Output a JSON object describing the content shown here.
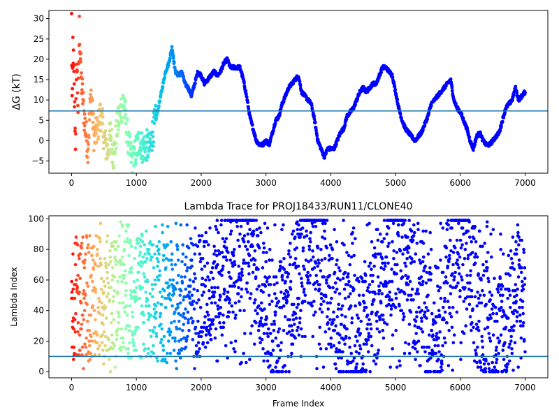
{
  "chart_data": [
    {
      "type": "scatter",
      "title": "",
      "xlabel": "",
      "ylabel": "ΔG (kT)",
      "xlim": [
        -350,
        7350
      ],
      "ylim": [
        -8,
        32
      ],
      "xticks": [
        0,
        1000,
        2000,
        3000,
        4000,
        5000,
        6000,
        7000
      ],
      "xtick_labels": [
        "0",
        "1000",
        "2000",
        "3000",
        "4000",
        "5000",
        "6000",
        "7000"
      ],
      "yticks": [
        -5,
        0,
        5,
        10,
        15,
        20,
        25,
        30
      ],
      "ytick_labels": [
        "−5",
        "0",
        "5",
        "10",
        "15",
        "20",
        "25",
        "30"
      ],
      "hline": 7.3,
      "colormap": "rainbow (red at frame 0 to violet at end)",
      "grid": false,
      "trace": [
        [
          0,
          30
        ],
        [
          10,
          5
        ],
        [
          20,
          24
        ],
        [
          40,
          12
        ],
        [
          60,
          0
        ],
        [
          80,
          20
        ],
        [
          100,
          8
        ],
        [
          120,
          28
        ],
        [
          150,
          15
        ],
        [
          200,
          5
        ],
        [
          250,
          -2
        ],
        [
          300,
          12
        ],
        [
          350,
          0
        ],
        [
          400,
          3
        ],
        [
          450,
          7
        ],
        [
          500,
          1
        ],
        [
          550,
          -3
        ],
        [
          600,
          2
        ],
        [
          650,
          -4
        ],
        [
          700,
          3
        ],
        [
          750,
          7
        ],
        [
          800,
          10
        ],
        [
          850,
          3
        ],
        [
          900,
          -3
        ],
        [
          950,
          -5
        ],
        [
          1000,
          -2
        ],
        [
          1050,
          0
        ],
        [
          1100,
          -2
        ],
        [
          1150,
          -1
        ],
        [
          1200,
          -2
        ],
        [
          1250,
          2
        ],
        [
          1300,
          5
        ],
        [
          1350,
          9
        ],
        [
          1400,
          13
        ],
        [
          1450,
          17
        ],
        [
          1500,
          19
        ],
        [
          1550,
          23
        ],
        [
          1600,
          17
        ],
        [
          1650,
          16
        ],
        [
          1700,
          17
        ],
        [
          1750,
          14
        ],
        [
          1800,
          13
        ],
        [
          1850,
          11
        ],
        [
          1900,
          14
        ],
        [
          1950,
          17
        ],
        [
          2000,
          16
        ],
        [
          2050,
          14
        ],
        [
          2100,
          15
        ],
        [
          2150,
          16
        ],
        [
          2200,
          17
        ],
        [
          2250,
          16
        ],
        [
          2300,
          17
        ],
        [
          2350,
          19
        ],
        [
          2400,
          20
        ],
        [
          2450,
          18
        ],
        [
          2500,
          18
        ],
        [
          2550,
          18
        ],
        [
          2600,
          18
        ],
        [
          2650,
          15
        ],
        [
          2700,
          11
        ],
        [
          2750,
          6
        ],
        [
          2800,
          3
        ],
        [
          2850,
          0
        ],
        [
          2900,
          -1
        ],
        [
          2950,
          -1
        ],
        [
          3000,
          0
        ],
        [
          3050,
          -1
        ],
        [
          3100,
          2
        ],
        [
          3150,
          5
        ],
        [
          3200,
          6
        ],
        [
          3250,
          9
        ],
        [
          3300,
          11
        ],
        [
          3350,
          13
        ],
        [
          3400,
          14
        ],
        [
          3450,
          15
        ],
        [
          3500,
          16
        ],
        [
          3550,
          12
        ],
        [
          3600,
          11
        ],
        [
          3650,
          10
        ],
        [
          3700,
          9
        ],
        [
          3750,
          5
        ],
        [
          3800,
          0
        ],
        [
          3850,
          -2
        ],
        [
          3900,
          -4
        ],
        [
          3950,
          -2
        ],
        [
          4000,
          -2
        ],
        [
          4050,
          -2
        ],
        [
          4100,
          0
        ],
        [
          4150,
          2
        ],
        [
          4200,
          3
        ],
        [
          4250,
          6
        ],
        [
          4300,
          7
        ],
        [
          4350,
          8
        ],
        [
          4400,
          10
        ],
        [
          4450,
          12
        ],
        [
          4500,
          13
        ],
        [
          4550,
          12
        ],
        [
          4600,
          13
        ],
        [
          4650,
          14
        ],
        [
          4700,
          14
        ],
        [
          4750,
          16
        ],
        [
          4800,
          18
        ],
        [
          4850,
          18
        ],
        [
          4900,
          17
        ],
        [
          4950,
          16
        ],
        [
          5000,
          12
        ],
        [
          5050,
          8
        ],
        [
          5100,
          5
        ],
        [
          5150,
          3
        ],
        [
          5200,
          2
        ],
        [
          5250,
          1
        ],
        [
          5300,
          0
        ],
        [
          5350,
          1
        ],
        [
          5400,
          2
        ],
        [
          5450,
          4
        ],
        [
          5500,
          6
        ],
        [
          5550,
          9
        ],
        [
          5600,
          10
        ],
        [
          5650,
          11
        ],
        [
          5700,
          12
        ],
        [
          5750,
          13
        ],
        [
          5800,
          14
        ],
        [
          5850,
          15
        ],
        [
          5900,
          10
        ],
        [
          5950,
          8
        ],
        [
          6000,
          7
        ],
        [
          6050,
          5
        ],
        [
          6100,
          3
        ],
        [
          6150,
          0
        ],
        [
          6200,
          -2
        ],
        [
          6250,
          1
        ],
        [
          6300,
          2
        ],
        [
          6350,
          0
        ],
        [
          6400,
          -1
        ],
        [
          6450,
          -1
        ],
        [
          6500,
          0
        ],
        [
          6550,
          1
        ],
        [
          6600,
          2
        ],
        [
          6650,
          5
        ],
        [
          6700,
          8
        ],
        [
          6750,
          9
        ],
        [
          6800,
          10
        ],
        [
          6850,
          13
        ],
        [
          6900,
          10
        ],
        [
          6950,
          11
        ],
        [
          7000,
          12
        ]
      ]
    },
    {
      "type": "scatter",
      "title": "Lambda Trace for PROJ18433/RUN11/CLONE40",
      "xlabel": "Frame Index",
      "ylabel": "Lambda Index",
      "xlim": [
        -350,
        7350
      ],
      "ylim": [
        -4,
        102
      ],
      "xticks": [
        0,
        1000,
        2000,
        3000,
        4000,
        5000,
        6000,
        7000
      ],
      "xtick_labels": [
        "0",
        "1000",
        "2000",
        "3000",
        "4000",
        "5000",
        "6000",
        "7000"
      ],
      "yticks": [
        0,
        20,
        40,
        60,
        80,
        100
      ],
      "ytick_labels": [
        "0",
        "20",
        "40",
        "60",
        "80",
        "100"
      ],
      "hline": 10,
      "colormap": "rainbow (red at frame 0 to violet at end)",
      "grid": false,
      "trace_center": [
        [
          0,
          50
        ],
        [
          500,
          50
        ],
        [
          1000,
          48
        ],
        [
          1500,
          45
        ],
        [
          2000,
          50
        ],
        [
          2500,
          72
        ],
        [
          2700,
          90
        ],
        [
          2900,
          60
        ],
        [
          3100,
          30
        ],
        [
          3300,
          35
        ],
        [
          3600,
          85
        ],
        [
          3900,
          80
        ],
        [
          4100,
          30
        ],
        [
          4400,
          25
        ],
        [
          4700,
          45
        ],
        [
          5000,
          85
        ],
        [
          5200,
          70
        ],
        [
          5500,
          25
        ],
        [
          5700,
          35
        ],
        [
          5900,
          85
        ],
        [
          6100,
          75
        ],
        [
          6300,
          40
        ],
        [
          6500,
          25
        ],
        [
          6700,
          30
        ],
        [
          6900,
          60
        ],
        [
          7000,
          45
        ]
      ]
    }
  ]
}
